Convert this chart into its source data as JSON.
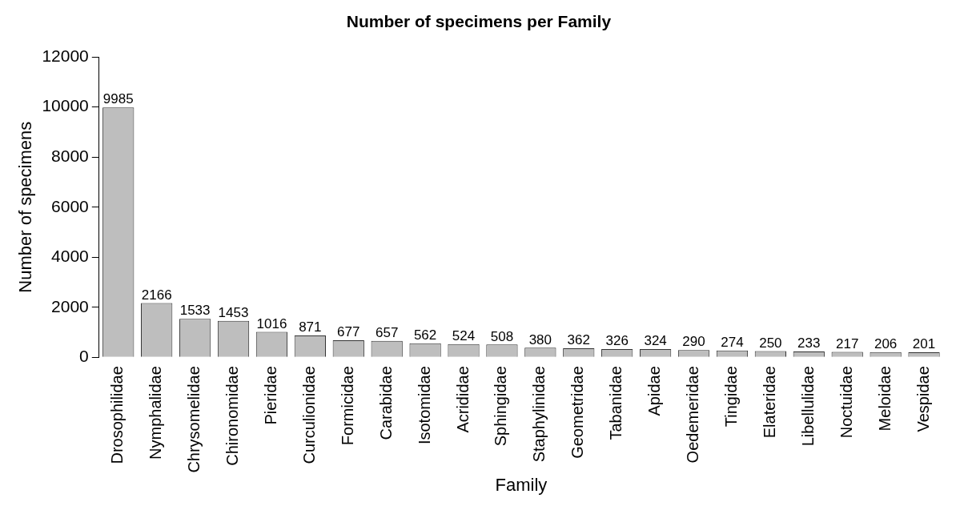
{
  "chart_data": {
    "type": "bar",
    "title": "Number of specimens per Family",
    "xlabel": "Family",
    "ylabel": "Number of specimens",
    "categories": [
      "Drosophilidae",
      "Nymphalidae",
      "Chrysomelidae",
      "Chironomidae",
      "Pieridae",
      "Curculionidae",
      "Formicidae",
      "Carabidae",
      "Isotomidae",
      "Acrididae",
      "Sphingidae",
      "Staphylinidae",
      "Geometridae",
      "Tabanidae",
      "Apidae",
      "Oedemeridae",
      "Tingidae",
      "Elateridae",
      "Libellulidae",
      "Noctuidae",
      "Meloidae",
      "Vespidae"
    ],
    "values": [
      9985,
      2166,
      1533,
      1453,
      1016,
      871,
      677,
      657,
      562,
      524,
      508,
      380,
      362,
      326,
      324,
      290,
      274,
      250,
      233,
      217,
      206,
      201
    ],
    "color": "#bebebe",
    "ylim": [
      0,
      12000
    ],
    "yticks": [
      0,
      2000,
      4000,
      6000,
      8000,
      10000,
      12000
    ],
    "grid": false,
    "legend": false,
    "data_labels": true
  }
}
